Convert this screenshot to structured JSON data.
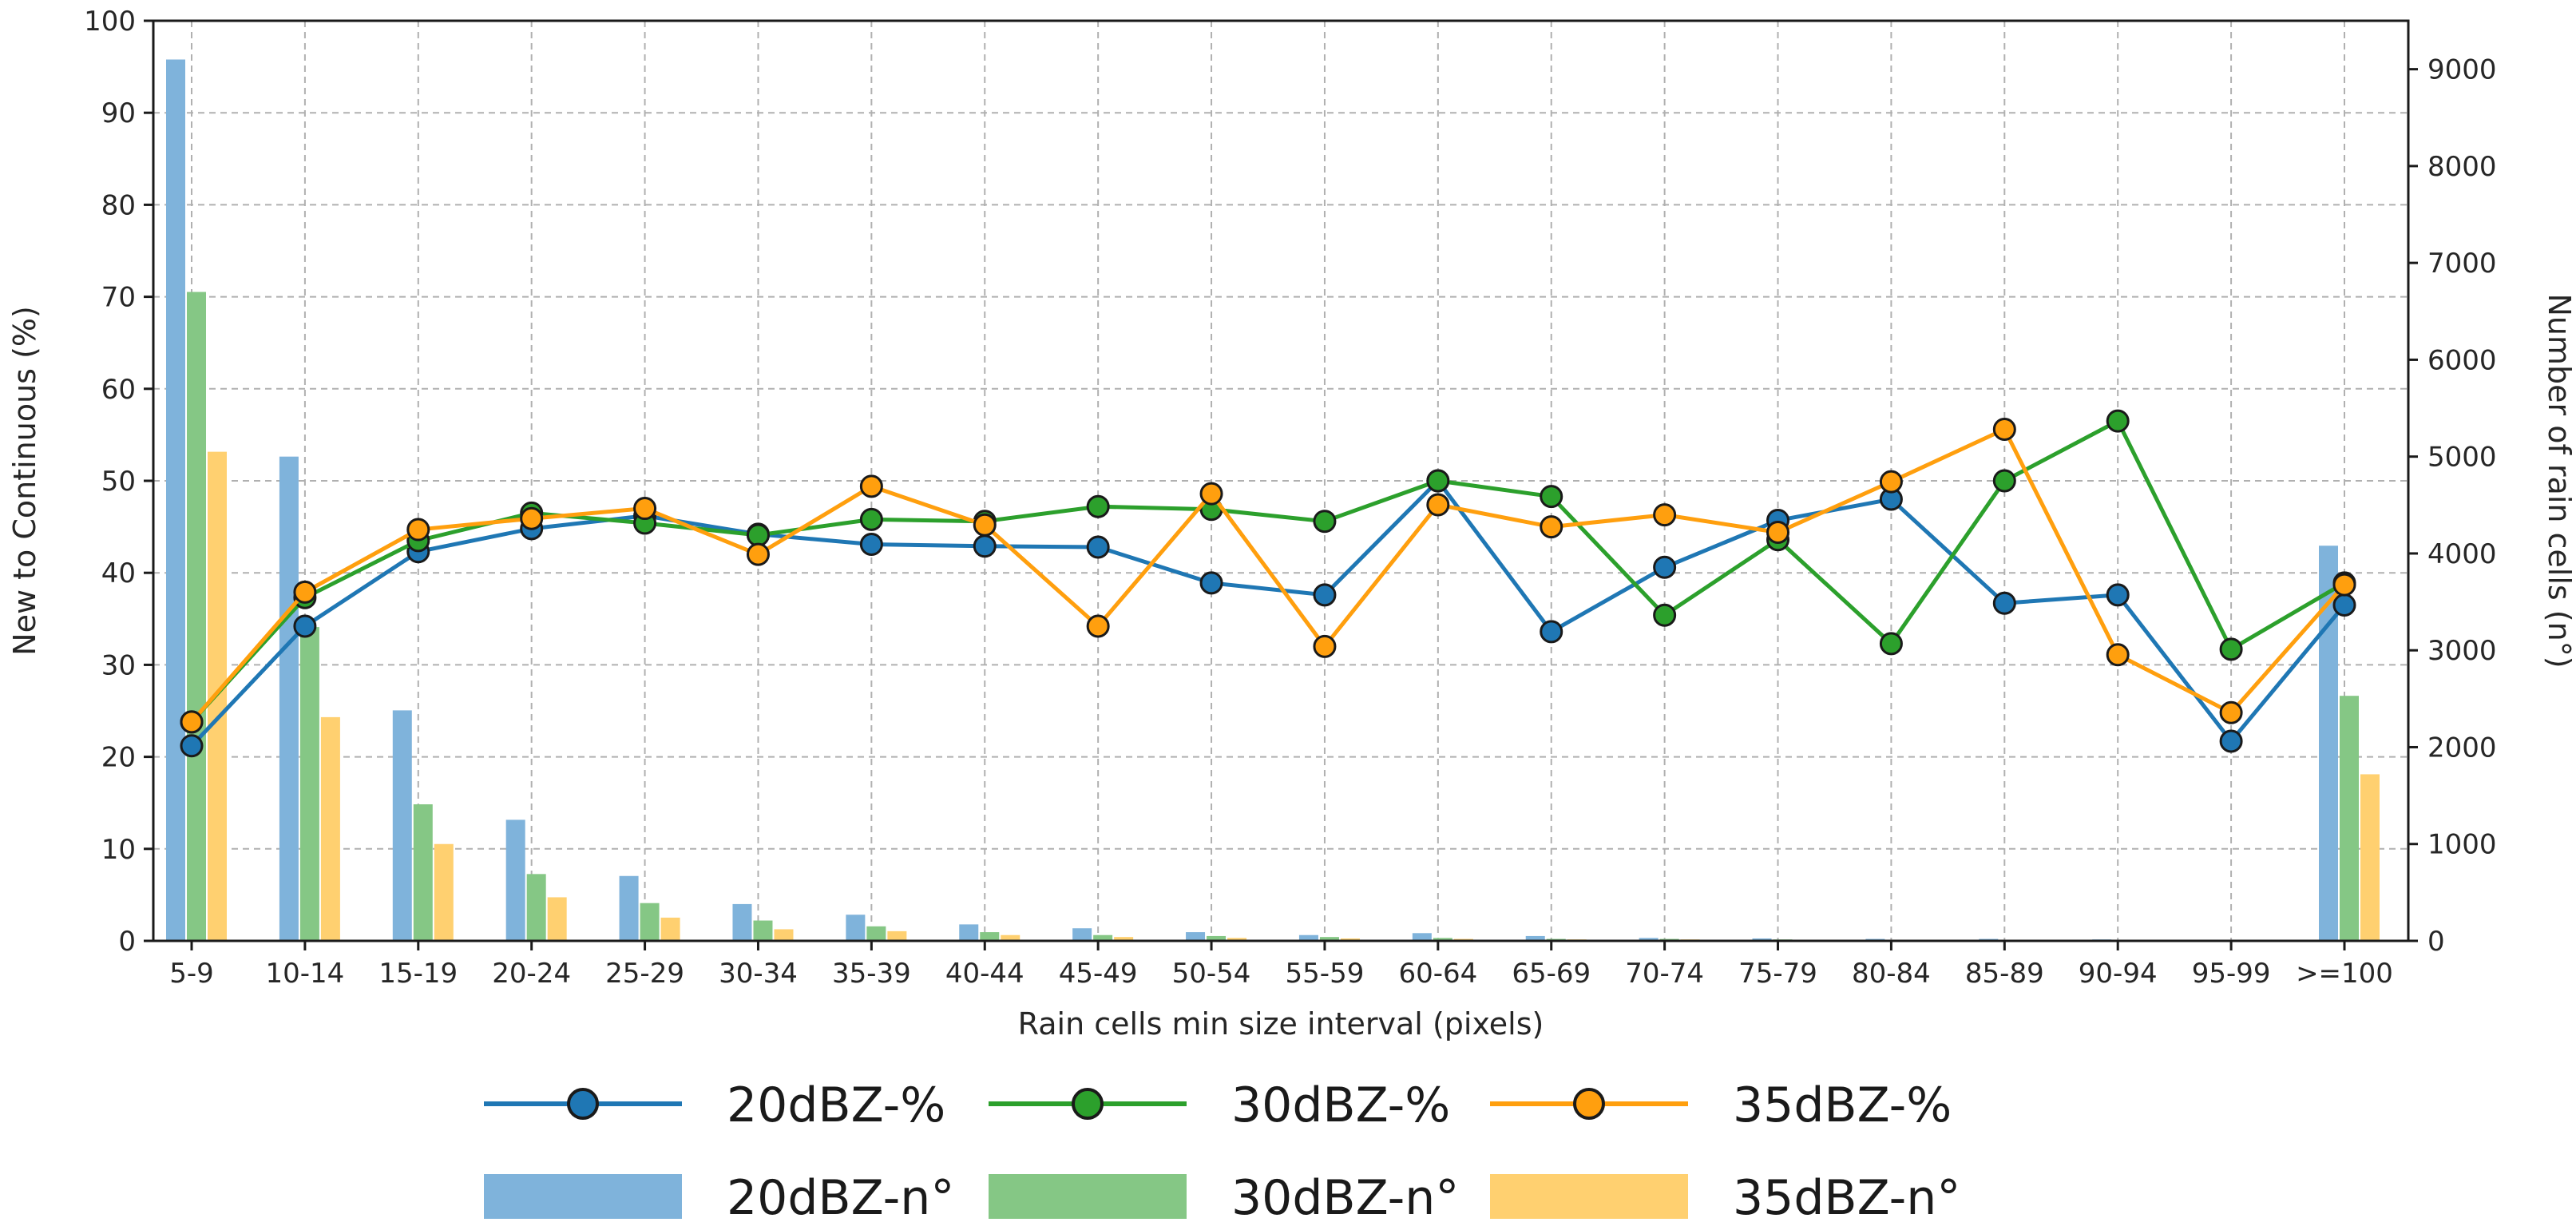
{
  "chart_data": {
    "type": "bar+line",
    "title": "",
    "xlabel": "Rain cells min size interval (pixels)",
    "ylabel_left": "New to Continuous (%)",
    "ylabel_right": "Number of rain cells (n°)",
    "ylim_left": [
      0,
      100
    ],
    "ylim_right": [
      0,
      9500
    ],
    "yticks_left": [
      0,
      10,
      20,
      30,
      40,
      50,
      60,
      70,
      80,
      90,
      100
    ],
    "yticks_right": [
      0,
      1000,
      2000,
      3000,
      4000,
      5000,
      6000,
      7000,
      8000,
      9000
    ],
    "grid": true,
    "legend_position": "bottom",
    "categories": [
      "5-9",
      "10-14",
      "15-19",
      "20-24",
      "25-29",
      "30-34",
      "35-39",
      "40-44",
      "45-49",
      "50-54",
      "55-59",
      "60-64",
      "65-69",
      "70-74",
      "75-79",
      "80-84",
      "85-89",
      "90-94",
      "95-99",
      ">=100"
    ],
    "bar_series": [
      {
        "name": "20dBZ-n°",
        "color": "#7fb3db",
        "values": [
          9100,
          5000,
          2380,
          1250,
          670,
          380,
          270,
          170,
          130,
          90,
          60,
          80,
          50,
          30,
          25,
          20,
          20,
          15,
          10,
          4080
        ]
      },
      {
        "name": "30dBZ-n°",
        "color": "#85c785",
        "values": [
          6700,
          3240,
          1410,
          690,
          390,
          210,
          150,
          90,
          60,
          50,
          40,
          30,
          20,
          20,
          15,
          10,
          10,
          10,
          8,
          2530
        ]
      },
      {
        "name": "35dBZ-n°",
        "color": "#ffd070",
        "values": [
          5050,
          2310,
          1000,
          450,
          240,
          120,
          100,
          60,
          40,
          30,
          25,
          20,
          15,
          15,
          10,
          8,
          8,
          6,
          5,
          1720
        ]
      }
    ],
    "line_series": [
      {
        "name": "20dBZ-%",
        "color": "#1f77b4",
        "values": [
          21.2,
          34.2,
          42.3,
          44.8,
          46.2,
          44.2,
          43.1,
          42.9,
          42.8,
          38.9,
          37.6,
          50.0,
          33.6,
          40.6,
          45.7,
          48.0,
          36.7,
          37.6,
          21.7,
          36.5
        ]
      },
      {
        "name": "30dBZ-%",
        "color": "#2ca02c",
        "values": [
          23.8,
          37.3,
          43.5,
          46.5,
          45.4,
          44.1,
          45.8,
          45.6,
          47.2,
          46.9,
          45.6,
          50.0,
          48.3,
          35.4,
          43.6,
          32.3,
          50.0,
          56.5,
          31.7,
          38.9
        ]
      },
      {
        "name": "35dBZ-%",
        "color": "#ff9f0e",
        "values": [
          23.8,
          37.9,
          44.7,
          45.9,
          47.0,
          42.0,
          49.4,
          45.2,
          34.2,
          48.6,
          32.0,
          47.4,
          45.0,
          46.3,
          44.4,
          49.9,
          55.6,
          31.1,
          24.8,
          38.7
        ]
      }
    ],
    "legend": [
      {
        "label": "20dBZ-%",
        "kind": "line",
        "color": "#1f77b4"
      },
      {
        "label": "30dBZ-%",
        "kind": "line",
        "color": "#2ca02c"
      },
      {
        "label": "35dBZ-%",
        "kind": "line",
        "color": "#ff9f0e"
      },
      {
        "label": "20dBZ-n°",
        "kind": "bar",
        "color": "#7fb3db"
      },
      {
        "label": "30dBZ-n°",
        "kind": "bar",
        "color": "#85c785"
      },
      {
        "label": "35dBZ-n°",
        "kind": "bar",
        "color": "#ffd070"
      }
    ]
  }
}
